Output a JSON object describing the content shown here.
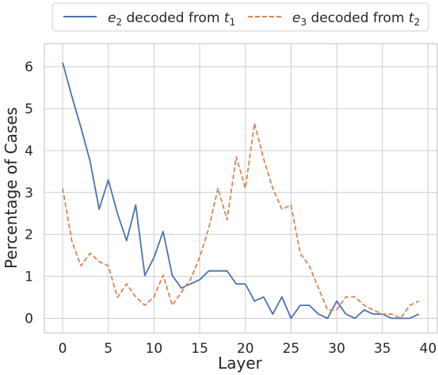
{
  "chart_data": {
    "type": "line",
    "title": "",
    "xlabel": "Layer",
    "ylabel": "Percentage of Cases",
    "xlim": [
      -2,
      41
    ],
    "ylim": [
      -0.35,
      6.55
    ],
    "xticks": [
      0,
      5,
      10,
      15,
      20,
      25,
      30,
      35,
      40
    ],
    "yticks": [
      0,
      1,
      2,
      3,
      4,
      5,
      6
    ],
    "grid": true,
    "legend_position": "top",
    "x": [
      0,
      1,
      2,
      3,
      4,
      5,
      6,
      7,
      8,
      9,
      10,
      11,
      12,
      13,
      14,
      15,
      16,
      17,
      18,
      19,
      20,
      21,
      22,
      23,
      24,
      25,
      26,
      27,
      28,
      29,
      30,
      31,
      32,
      33,
      34,
      35,
      36,
      37,
      38,
      39
    ],
    "series": [
      {
        "name_base": "e",
        "name_sub": "2",
        "name_mid": " decoded from ",
        "name_base2": "t",
        "name_sub2": "1",
        "color": "#4c72b0",
        "dash": "solid",
        "values": [
          6.1,
          5.3,
          4.55,
          3.75,
          2.6,
          3.3,
          2.5,
          1.85,
          2.7,
          1.02,
          1.45,
          2.07,
          1.02,
          0.72,
          0.82,
          0.92,
          1.13,
          1.13,
          1.13,
          0.82,
          0.82,
          0.41,
          0.51,
          0.1,
          0.51,
          0.0,
          0.31,
          0.31,
          0.1,
          0.0,
          0.41,
          0.1,
          0.0,
          0.2,
          0.1,
          0.1,
          0.0,
          0.0,
          0.0,
          0.1
        ]
      },
      {
        "name_base": "e",
        "name_sub": "3",
        "name_mid": " decoded from ",
        "name_base2": "t",
        "name_sub2": "2",
        "color": "#dd8452",
        "dash": "dashed",
        "values": [
          3.1,
          1.85,
          1.25,
          1.55,
          1.35,
          1.25,
          0.5,
          0.82,
          0.51,
          0.31,
          0.51,
          1.03,
          0.31,
          0.62,
          0.93,
          1.45,
          2.15,
          3.1,
          2.35,
          3.85,
          3.1,
          4.65,
          3.8,
          3.1,
          2.6,
          2.7,
          1.55,
          1.25,
          0.72,
          0.2,
          0.2,
          0.51,
          0.51,
          0.31,
          0.2,
          0.1,
          0.1,
          0.0,
          0.31,
          0.41
        ]
      }
    ]
  }
}
